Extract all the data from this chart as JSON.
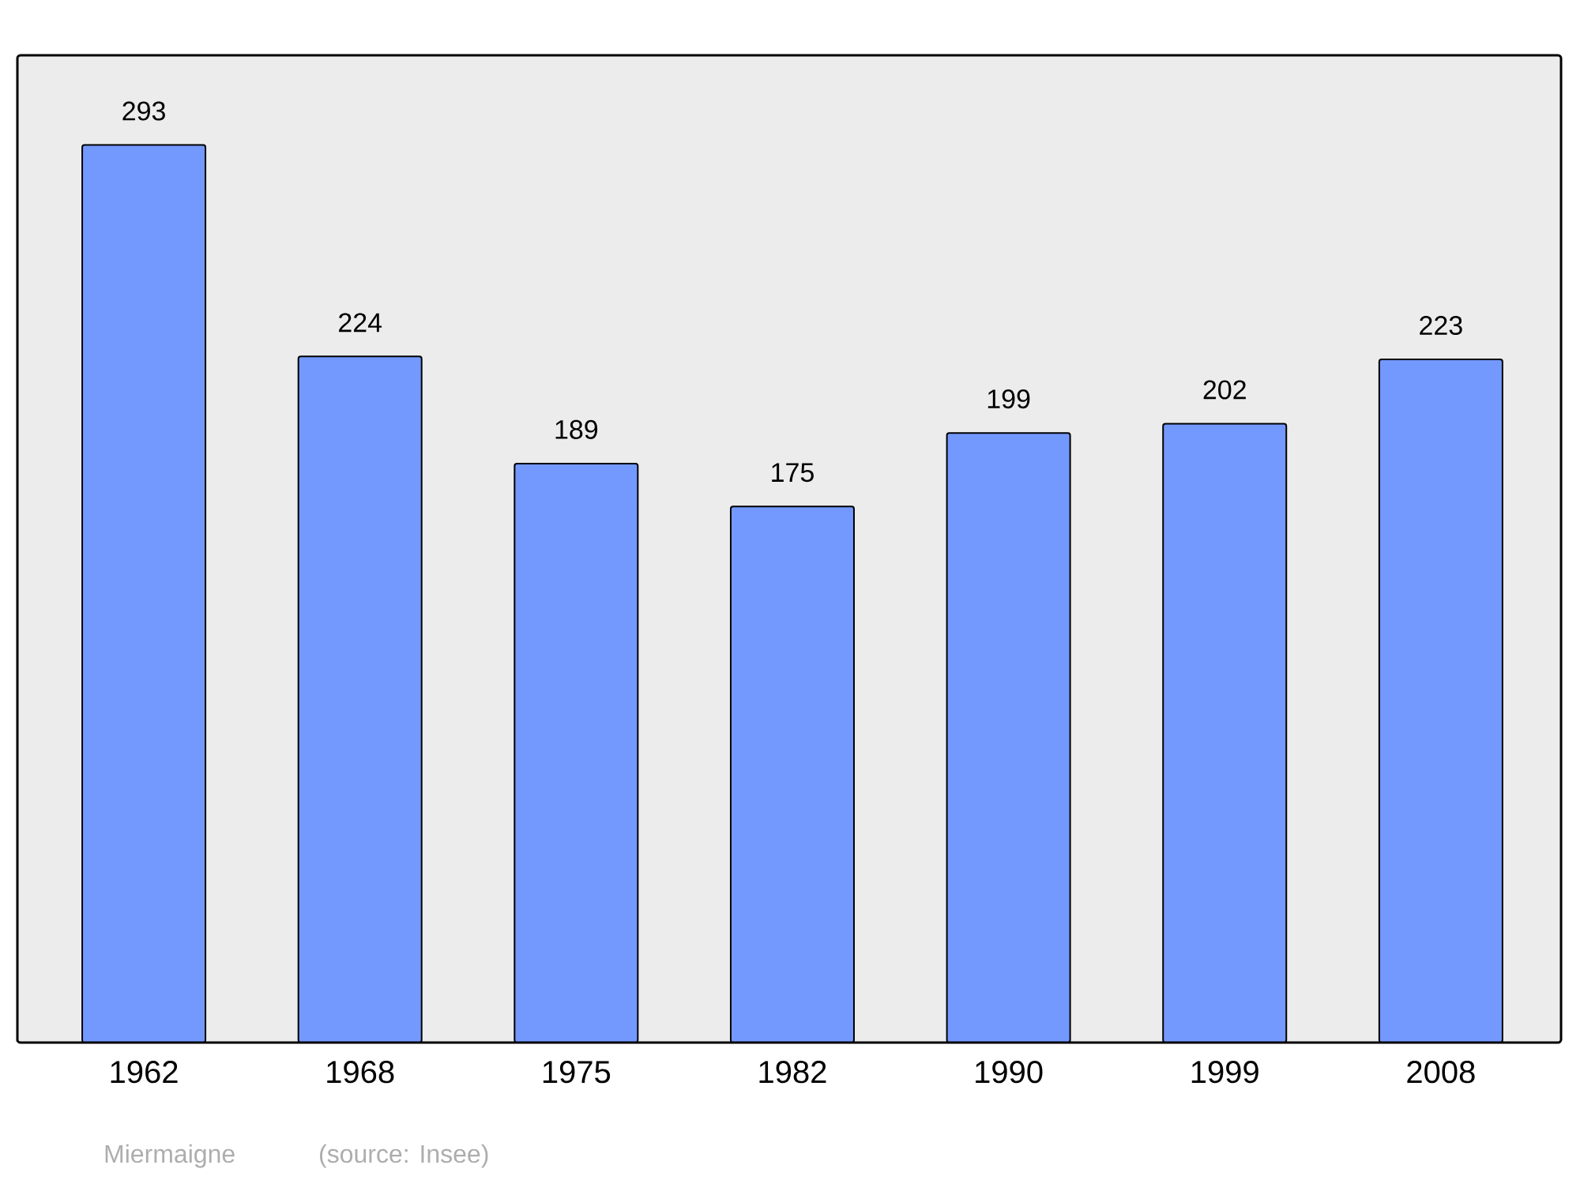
{
  "chart_data": {
    "type": "bar",
    "categories": [
      "1962",
      "1968",
      "1975",
      "1982",
      "1990",
      "1999",
      "2008"
    ],
    "values": [
      293,
      224,
      189,
      175,
      199,
      202,
      223
    ],
    "color": "#7399ff",
    "data_labels": true,
    "annotations": [
      "Miermaigne",
      "(source: Insee)"
    ]
  }
}
